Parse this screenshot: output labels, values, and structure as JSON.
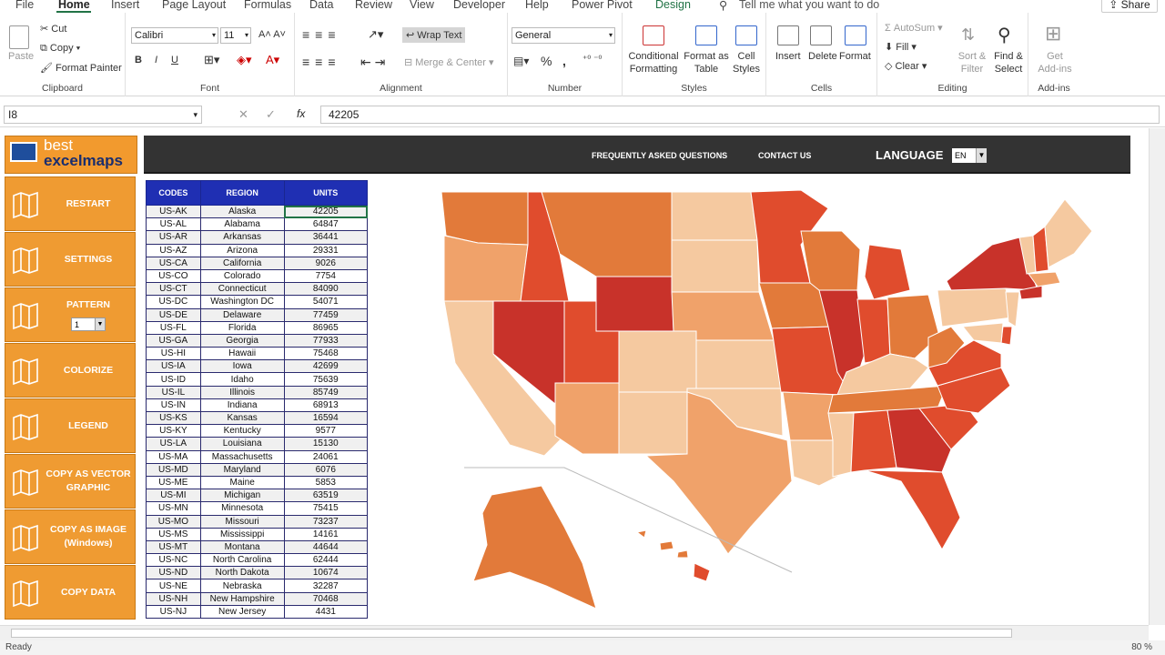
{
  "tabs": [
    "File",
    "Home",
    "Insert",
    "Page Layout",
    "Formulas",
    "Data",
    "Review",
    "View",
    "Developer",
    "Help",
    "Power Pivot",
    "Design"
  ],
  "tell_me": "Tell me what you want to do",
  "share": "Share",
  "ribbon": {
    "clipboard": {
      "paste": "Paste",
      "cut": "Cut",
      "copy": "Copy",
      "format_painter": "Format Painter",
      "label": "Clipboard"
    },
    "font": {
      "name": "Calibri",
      "size": "11",
      "label": "Font",
      "bold": "B",
      "italic": "I",
      "underline": "U"
    },
    "alignment": {
      "wrap": "Wrap Text",
      "merge": "Merge & Center",
      "label": "Alignment"
    },
    "number": {
      "format": "General",
      "label": "Number",
      "percent": "%",
      "comma": ","
    },
    "styles": {
      "cond": "Conditional Formatting",
      "format_table": "Format as Table",
      "cell_styles": "Cell Styles",
      "label": "Styles"
    },
    "cells": {
      "insert": "Insert",
      "delete": "Delete",
      "format": "Format",
      "label": "Cells"
    },
    "editing": {
      "autosum": "AutoSum",
      "fill": "Fill",
      "clear": "Clear",
      "sort": "Sort & Filter",
      "find": "Find & Select",
      "label": "Editing"
    },
    "addins": {
      "get": "Get Add-ins",
      "label": "Add-ins"
    }
  },
  "formula_bar": {
    "cell": "I8",
    "value": "42205",
    "fx": "fx"
  },
  "logo": {
    "line1": "best",
    "line2": "excelmaps"
  },
  "sidebar": [
    {
      "label": "RESTART",
      "icon": "restart-map-icon"
    },
    {
      "label": "SETTINGS",
      "icon": "settings-map-icon"
    },
    {
      "label": "PATTERN",
      "icon": "pattern-map-icon",
      "select": "1"
    },
    {
      "label": "COLORIZE",
      "icon": "colorize-map-icon"
    },
    {
      "label": "LEGEND",
      "icon": "legend-map-icon"
    },
    {
      "label": "COPY AS VECTOR GRAPHIC",
      "icon": "vector-map-icon"
    },
    {
      "label": "COPY AS IMAGE (Windows)",
      "icon": "image-map-icon"
    },
    {
      "label": "COPY DATA",
      "icon": "copy-data-map-icon"
    }
  ],
  "topbar": {
    "faq": "FREQUENTLY ASKED QUESTIONS",
    "contact": "CONTACT US",
    "language": "LANGUAGE",
    "lang_value": "EN"
  },
  "table": {
    "headers": [
      "CODES",
      "REGION",
      "UNITS"
    ],
    "rows": [
      [
        "US-AK",
        "Alaska",
        "42205"
      ],
      [
        "US-AL",
        "Alabama",
        "64847"
      ],
      [
        "US-AR",
        "Arkansas",
        "36441"
      ],
      [
        "US-AZ",
        "Arizona",
        "29331"
      ],
      [
        "US-CA",
        "California",
        "9026"
      ],
      [
        "US-CO",
        "Colorado",
        "7754"
      ],
      [
        "US-CT",
        "Connecticut",
        "84090"
      ],
      [
        "US-DC",
        "Washington DC",
        "54071"
      ],
      [
        "US-DE",
        "Delaware",
        "77459"
      ],
      [
        "US-FL",
        "Florida",
        "86965"
      ],
      [
        "US-GA",
        "Georgia",
        "77933"
      ],
      [
        "US-HI",
        "Hawaii",
        "75468"
      ],
      [
        "US-IA",
        "Iowa",
        "42699"
      ],
      [
        "US-ID",
        "Idaho",
        "75639"
      ],
      [
        "US-IL",
        "Illinois",
        "85749"
      ],
      [
        "US-IN",
        "Indiana",
        "68913"
      ],
      [
        "US-KS",
        "Kansas",
        "16594"
      ],
      [
        "US-KY",
        "Kentucky",
        "9577"
      ],
      [
        "US-LA",
        "Louisiana",
        "15130"
      ],
      [
        "US-MA",
        "Massachusetts",
        "24061"
      ],
      [
        "US-MD",
        "Maryland",
        "6076"
      ],
      [
        "US-ME",
        "Maine",
        "5853"
      ],
      [
        "US-MI",
        "Michigan",
        "63519"
      ],
      [
        "US-MN",
        "Minnesota",
        "75415"
      ],
      [
        "US-MO",
        "Missouri",
        "73237"
      ],
      [
        "US-MS",
        "Mississippi",
        "14161"
      ],
      [
        "US-MT",
        "Montana",
        "44644"
      ],
      [
        "US-NC",
        "North Carolina",
        "62444"
      ],
      [
        "US-ND",
        "North Dakota",
        "10674"
      ],
      [
        "US-NE",
        "Nebraska",
        "32287"
      ],
      [
        "US-NH",
        "New Hampshire",
        "70468"
      ],
      [
        "US-NJ",
        "New Jersey",
        "4431"
      ]
    ]
  },
  "status": {
    "ready": "Ready",
    "zoom": "80 %"
  },
  "colors": {
    "sidebar": "#ef9b32",
    "header": "#1f2fb3",
    "topbar": "#333333",
    "accent": "#217346"
  }
}
